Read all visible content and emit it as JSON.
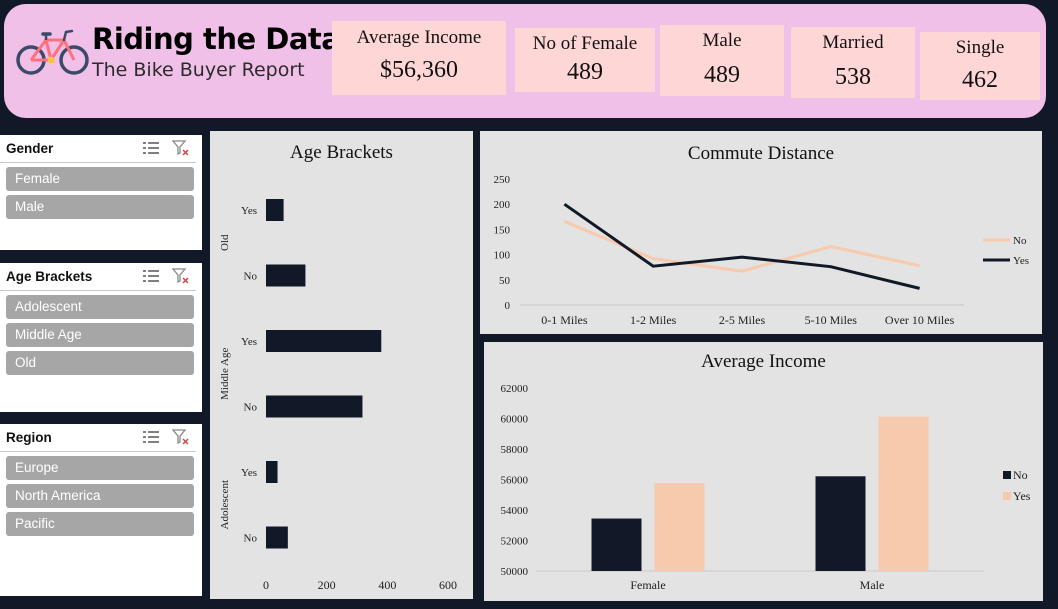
{
  "header": {
    "title": "Riding the Data",
    "subtitle": "The Bike Buyer Report",
    "kpis": [
      {
        "label": "Average Income",
        "value": "$56,360"
      },
      {
        "label": "No of Female",
        "value": "489"
      },
      {
        "label": "Male",
        "value": "489"
      },
      {
        "label": "Married",
        "value": "538"
      },
      {
        "label": "Single",
        "value": "462"
      }
    ]
  },
  "slicers": [
    {
      "title": "Gender",
      "items": [
        "Female",
        "Male"
      ]
    },
    {
      "title": "Age Brackets",
      "items": [
        "Adolescent",
        "Middle Age",
        "Old"
      ]
    },
    {
      "title": "Region",
      "items": [
        "Europe",
        "North America",
        "Pacific"
      ]
    }
  ],
  "colors": {
    "header_bg": "#f1c0e8",
    "kpi_bg": "#ffd6d6",
    "dark_series": "#111827",
    "light_series": "#f7c9ad",
    "panel_bg": "#e3e3e3"
  },
  "chart_data": [
    {
      "type": "bar",
      "orientation": "horizontal",
      "title": "Age Brackets",
      "groups": [
        "Old",
        "Middle Age",
        "Adolescent"
      ],
      "categories": [
        "Yes",
        "No",
        "Yes",
        "No",
        "Yes",
        "No"
      ],
      "category_groups": [
        "Old",
        "Old",
        "Middle Age",
        "Middle Age",
        "Adolescent",
        "Adolescent"
      ],
      "values": [
        58,
        130,
        380,
        318,
        38,
        72
      ],
      "xlim": [
        0,
        600
      ],
      "xticks": [
        0,
        200,
        400,
        600
      ],
      "color": "#111827"
    },
    {
      "type": "line",
      "title": "Commute Distance",
      "categories": [
        "0-1 Miles",
        "1-2 Miles",
        "2-5 Miles",
        "5-10 Miles",
        "Over 10 Miles"
      ],
      "series": [
        {
          "name": "No",
          "values": [
            166,
            92,
            67,
            116,
            78
          ],
          "color": "#f7c9ad"
        },
        {
          "name": "Yes",
          "values": [
            200,
            77,
            95,
            76,
            33
          ],
          "color": "#111827"
        }
      ],
      "ylim": [
        0,
        250
      ],
      "yticks": [
        0,
        50,
        100,
        150,
        200,
        250
      ],
      "legend": "right"
    },
    {
      "type": "bar",
      "title": "Average Income",
      "categories": [
        "Female",
        "Male"
      ],
      "series": [
        {
          "name": "No",
          "values": [
            53440,
            56210
          ],
          "color": "#111827"
        },
        {
          "name": "Yes",
          "values": [
            55770,
            60120
          ],
          "color": "#f7c9ad"
        }
      ],
      "ylim": [
        50000,
        62000
      ],
      "yticks": [
        50000,
        52000,
        54000,
        56000,
        58000,
        60000,
        62000
      ],
      "legend": "right"
    }
  ]
}
